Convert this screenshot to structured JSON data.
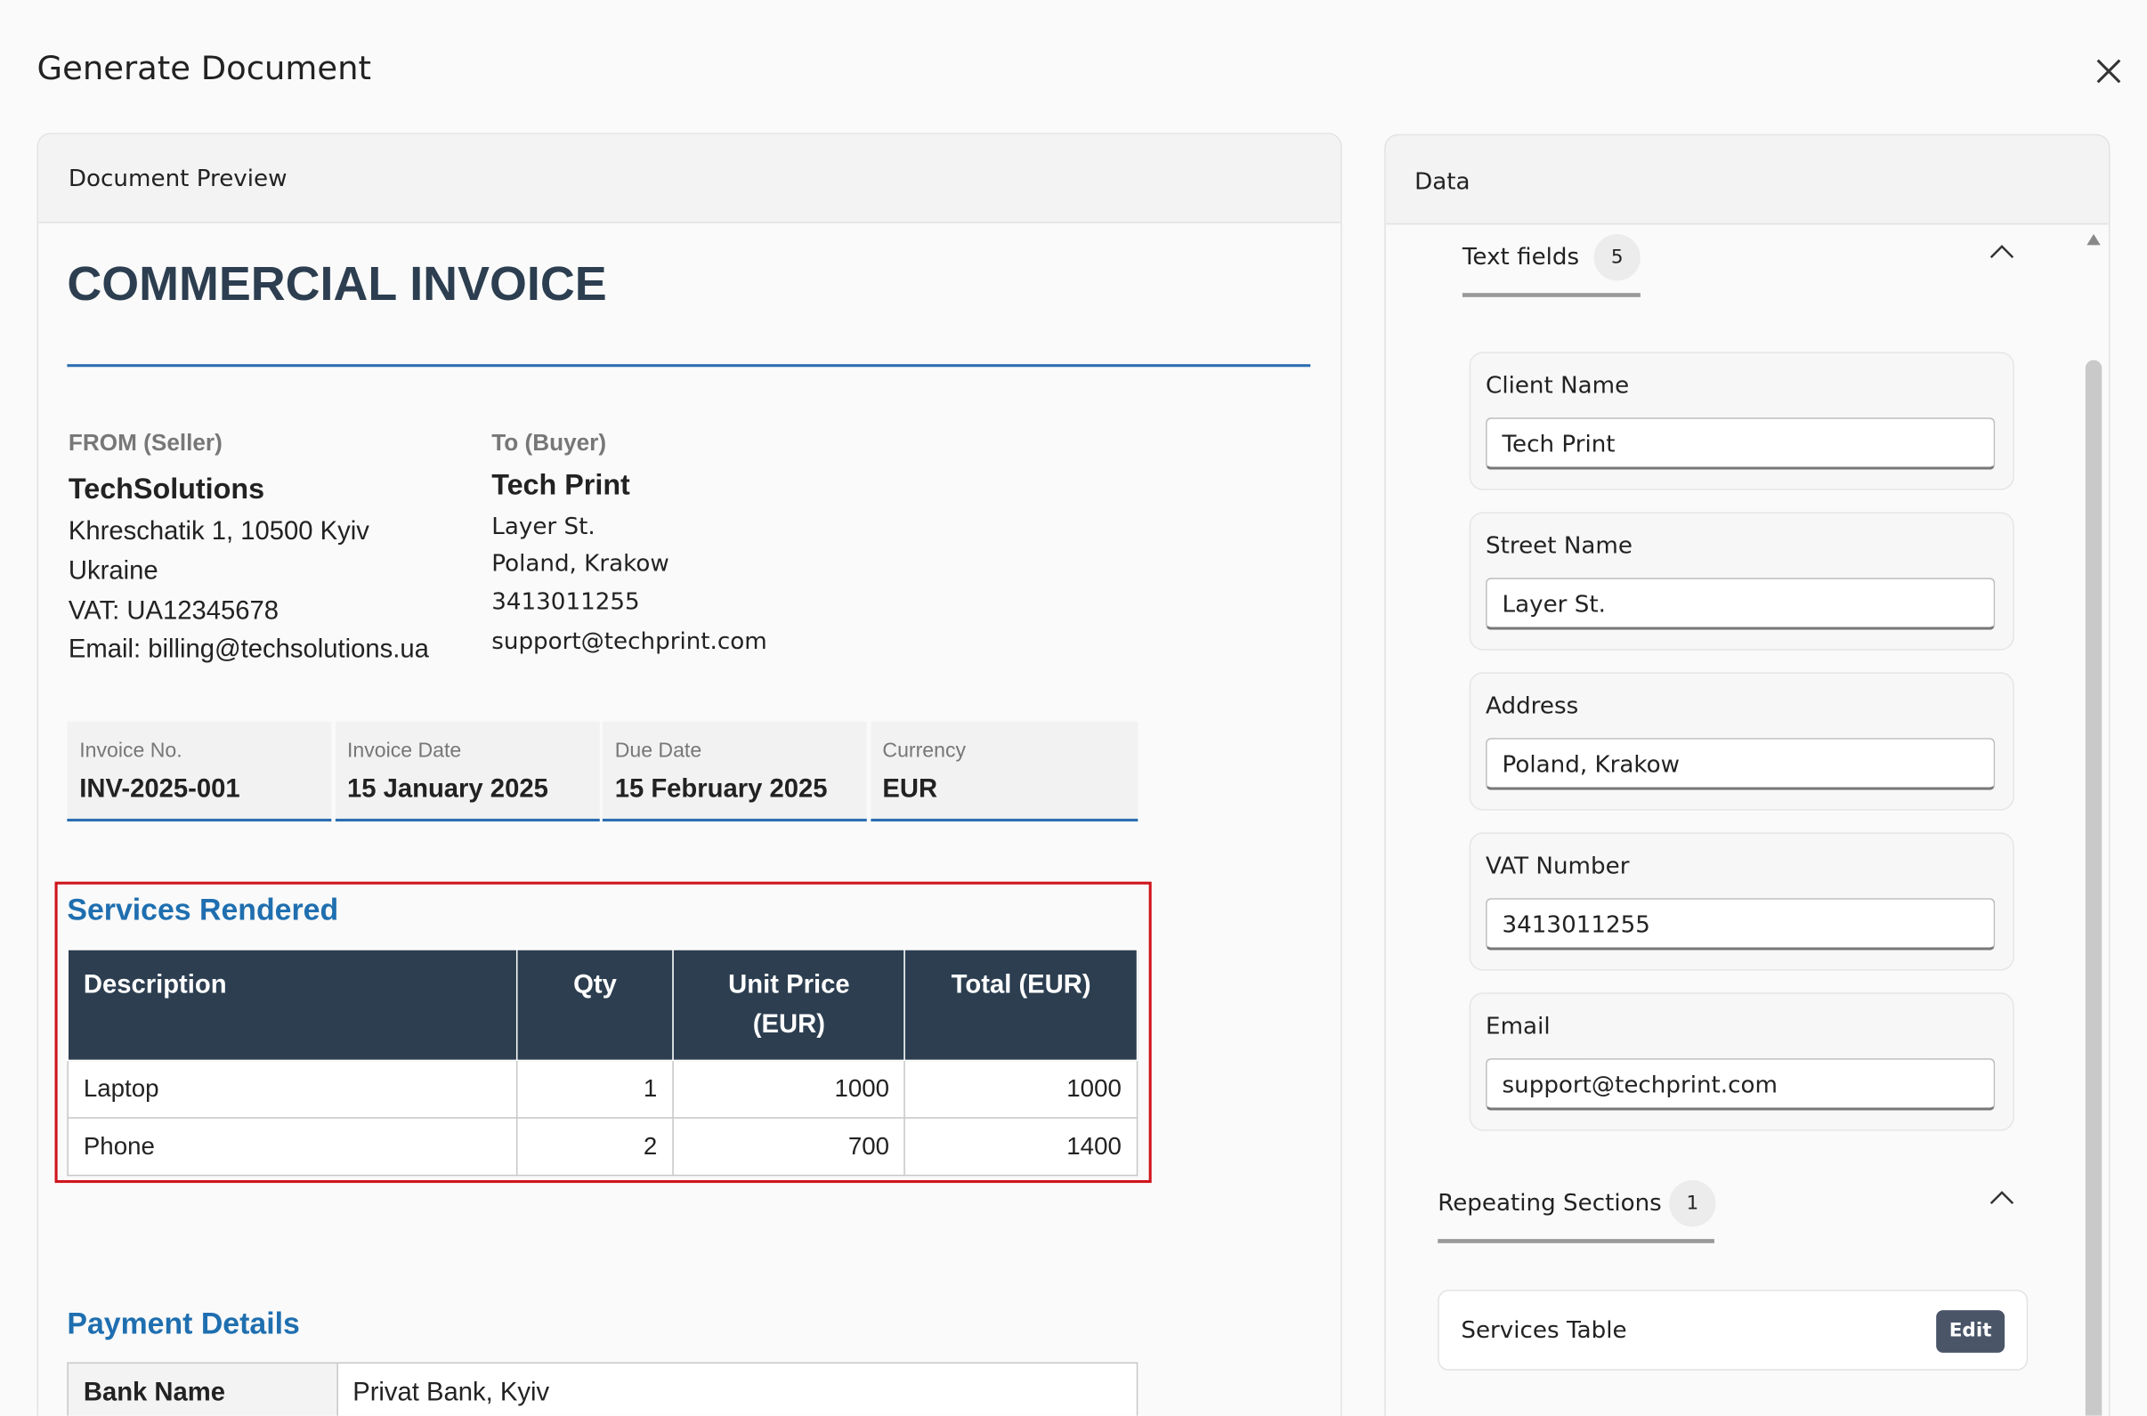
{
  "header": {
    "title": "Generate Document"
  },
  "preview": {
    "title": "Document Preview"
  },
  "invoice": {
    "title": "COMMERCIAL INVOICE",
    "seller": {
      "label": "FROM (Seller)",
      "name": "TechSolutions",
      "lines": [
        "Khreschatik 1, 10500 Kyiv",
        "Ukraine",
        "VAT: UA12345678",
        "Email: billing@techsolutions.ua"
      ]
    },
    "buyer": {
      "label": "To (Buyer)",
      "name": "Tech Print",
      "lines": [
        "Layer St.",
        "Poland, Krakow",
        "3413011255",
        "support@techprint.com"
      ]
    },
    "meta": [
      {
        "label": "Invoice No.",
        "value": "INV-2025-001"
      },
      {
        "label": "Invoice Date",
        "value": "15 January 2025"
      },
      {
        "label": "Due Date",
        "value": "15 February 2025"
      },
      {
        "label": "Currency",
        "value": "EUR"
      }
    ],
    "services": {
      "title": "Services Rendered",
      "headers": [
        "Description",
        "Qty",
        "Unit Price (EUR)",
        "Total (EUR)"
      ],
      "rows": [
        [
          "Laptop",
          1,
          1000,
          1000
        ],
        [
          "Phone",
          2,
          700,
          1400
        ]
      ]
    },
    "payment": {
      "title": "Payment Details",
      "rows": [
        [
          "Bank Name",
          "Privat Bank, Kyiv"
        ]
      ]
    }
  },
  "data_panel": {
    "title": "Data",
    "text_fields": {
      "title": "Text fields",
      "count": 5,
      "fields": [
        {
          "label": "Client Name",
          "value": "Tech Print"
        },
        {
          "label": "Street Name",
          "value": "Layer St."
        },
        {
          "label": "Address",
          "value": "Poland, Krakow"
        },
        {
          "label": "VAT Number",
          "value": "3413011255"
        },
        {
          "label": "Email",
          "value": "support@techprint.com"
        }
      ]
    },
    "repeating": {
      "title": "Repeating Sections",
      "count": 1,
      "items": [
        {
          "name": "Services Table",
          "action": "Edit"
        }
      ]
    }
  }
}
